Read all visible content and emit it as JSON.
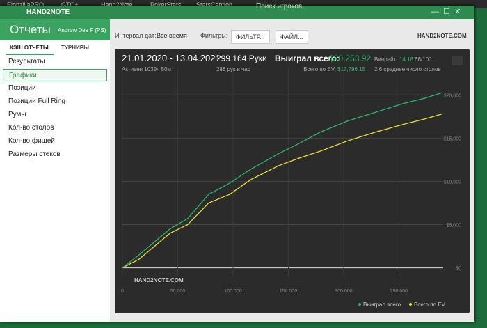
{
  "taskbar": {
    "tabs": [
      "ElonzillaPRO",
      "GTO+",
      "Hand2Note",
      "PokerStars",
      "StarsCaption"
    ],
    "search": "Поиск игроков"
  },
  "window": {
    "title": "HAND2NOTE"
  },
  "sidebar": {
    "title": "Отчеты",
    "user": "Andrew Dee F (PS)",
    "tabs": [
      "КЭШ ОТЧЕТЫ",
      "ТУРНИРЫ"
    ],
    "items": [
      "Результаты",
      "Графики",
      "Позиции",
      "Позиции Full Ring",
      "Румы",
      "Кол-во столов",
      "Кол-во фишей",
      "Размеры стеков"
    ]
  },
  "toolbar": {
    "interval_label": "Интервал дат:",
    "interval": "Все время",
    "filters_label": "Фильтры:",
    "filter_button": "ФИЛЬТР...",
    "file_button": "ФАЙЛ...",
    "logo": "HAND2NOTE.COM"
  },
  "stats": {
    "dates": "21.01.2020 - 13.04.2021",
    "active": "Активен 1039ч 50м",
    "hands": "299 164 Руки",
    "per_hour": "288 рук в час",
    "won_label": "Выиграл всего:",
    "won": "$20,253.92",
    "ev_label": "Всего по EV:",
    "ev": "$17,796.15",
    "winrate_label": "Винрейт:",
    "winrate": "14.18",
    "winrate_unit": "66/100",
    "tables": "2.6 среднее число столов"
  },
  "chart_data": {
    "type": "line",
    "watermark": "HAND2NOTE.COM",
    "x": [
      0,
      15000,
      43000,
      59000,
      78000,
      97000,
      116000,
      141000,
      160000,
      179000,
      204000,
      229000,
      254000,
      273000,
      289000
    ],
    "series": [
      {
        "name": "Выиграл всего",
        "color": "#2fb36b",
        "values": [
          0,
          1500,
          4500,
          5700,
          8500,
          9800,
          11400,
          13200,
          14400,
          15700,
          17000,
          18000,
          19000,
          19600,
          20254
        ]
      },
      {
        "name": "Всего по EV",
        "color": "#e8e035",
        "values": [
          0,
          1000,
          4000,
          5000,
          7500,
          8500,
          10200,
          11800,
          12700,
          13500,
          14700,
          15700,
          16600,
          17200,
          17796
        ]
      }
    ],
    "xlim": [
      0,
      290000
    ],
    "xticks": [
      0,
      {
        "value": 50000,
        "label": "50 000"
      },
      {
        "value": 100000,
        "label": "100 000"
      },
      {
        "value": 150000,
        "label": "150 000"
      },
      {
        "value": 200000,
        "label": "200 000"
      },
      {
        "value": 250000,
        "label": "250 000"
      }
    ],
    "ylim": [
      -1000,
      23000
    ],
    "yticks": [
      {
        "value": 0,
        "label": "$0"
      },
      {
        "value": 5000,
        "label": "$5,000"
      },
      {
        "value": 10000,
        "label": "$10,000"
      },
      {
        "value": 15000,
        "label": "$15,000"
      },
      {
        "value": 20000,
        "label": "$20,000"
      }
    ],
    "grid": true,
    "legend": "bottom-right"
  }
}
